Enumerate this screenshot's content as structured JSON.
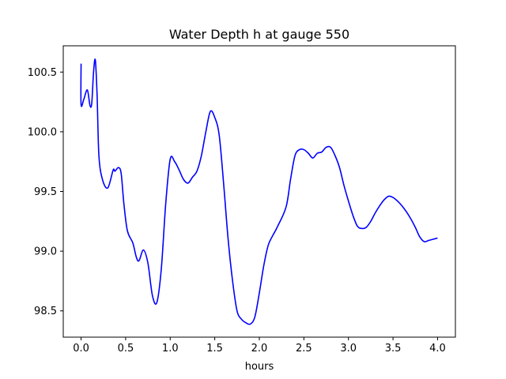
{
  "chart_data": {
    "type": "line",
    "title": "Water Depth h at gauge 550",
    "xlabel": "hours",
    "ylabel": "",
    "xlim": [
      -0.2,
      4.2
    ],
    "ylim": [
      98.28,
      100.72
    ],
    "x_ticks": [
      0.0,
      0.5,
      1.0,
      1.5,
      2.0,
      2.5,
      3.0,
      3.5,
      4.0
    ],
    "x_tick_labels": [
      "0.0",
      "0.5",
      "1.0",
      "1.5",
      "2.0",
      "2.5",
      "3.0",
      "3.5",
      "4.0"
    ],
    "y_ticks": [
      98.5,
      99.0,
      99.5,
      100.0,
      100.5
    ],
    "y_tick_labels": [
      "98.5",
      "99.0",
      "99.5",
      "100.0",
      "100.5"
    ],
    "grid": false,
    "series": [
      {
        "color": "#0000ff",
        "x": [
          0.0,
          0.0,
          0.03,
          0.07,
          0.1,
          0.12,
          0.14,
          0.16,
          0.18,
          0.2,
          0.24,
          0.3,
          0.36,
          0.38,
          0.42,
          0.45,
          0.48,
          0.52,
          0.58,
          0.62,
          0.65,
          0.7,
          0.75,
          0.8,
          0.85,
          0.9,
          0.95,
          1.0,
          1.05,
          1.1,
          1.15,
          1.2,
          1.25,
          1.3,
          1.35,
          1.4,
          1.45,
          1.5,
          1.55,
          1.6,
          1.65,
          1.7,
          1.75,
          1.8,
          1.85,
          1.9,
          1.95,
          2.0,
          2.05,
          2.1,
          2.15,
          2.2,
          2.3,
          2.35,
          2.4,
          2.45,
          2.5,
          2.55,
          2.6,
          2.65,
          2.7,
          2.75,
          2.8,
          2.85,
          2.9,
          2.95,
          3.0,
          3.05,
          3.1,
          3.15,
          3.2,
          3.25,
          3.3,
          3.35,
          3.4,
          3.45,
          3.5,
          3.55,
          3.6,
          3.65,
          3.7,
          3.75,
          3.8,
          3.85,
          3.9,
          3.95,
          4.0
        ],
        "y": [
          100.57,
          100.23,
          100.27,
          100.35,
          100.22,
          100.24,
          100.5,
          100.6,
          100.3,
          99.8,
          99.6,
          99.53,
          99.68,
          99.67,
          99.7,
          99.65,
          99.4,
          99.17,
          99.07,
          98.95,
          98.92,
          99.01,
          98.9,
          98.63,
          98.57,
          98.85,
          99.4,
          99.77,
          99.75,
          99.68,
          99.6,
          99.57,
          99.62,
          99.67,
          99.8,
          100.0,
          100.17,
          100.12,
          99.97,
          99.56,
          99.1,
          98.75,
          98.5,
          98.43,
          98.4,
          98.39,
          98.45,
          98.65,
          98.88,
          99.05,
          99.13,
          99.2,
          99.37,
          99.6,
          99.8,
          99.85,
          99.85,
          99.82,
          99.78,
          99.82,
          99.83,
          99.87,
          99.87,
          99.8,
          99.7,
          99.55,
          99.42,
          99.3,
          99.21,
          99.19,
          99.2,
          99.25,
          99.32,
          99.38,
          99.43,
          99.46,
          99.45,
          99.42,
          99.38,
          99.33,
          99.27,
          99.2,
          99.12,
          99.08,
          99.09,
          99.1,
          99.11
        ]
      }
    ]
  }
}
